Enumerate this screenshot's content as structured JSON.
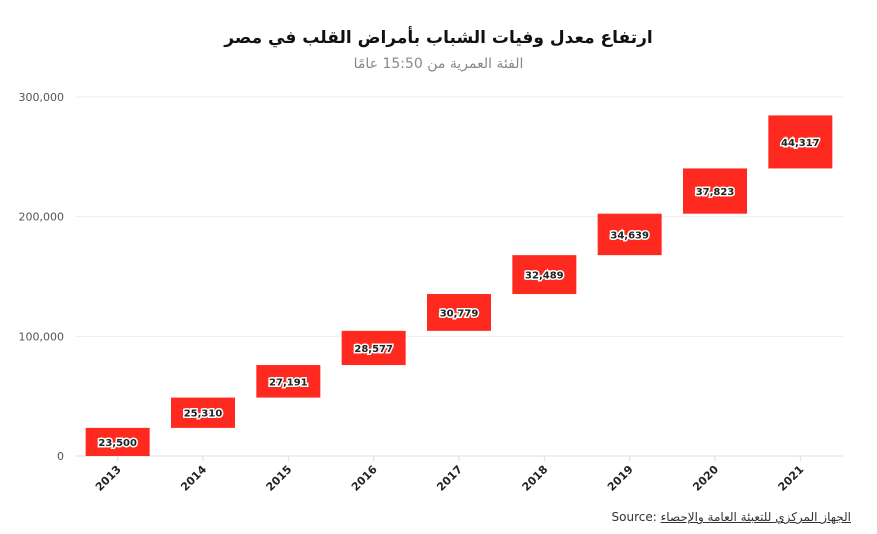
{
  "chart_data": {
    "type": "waterfall",
    "title": "ارتفاع معدل وفيات الشباب بأمراض القلب في مصر",
    "subtitle": "الفئة العمرية من 15:50 عامًا",
    "categories": [
      "2013",
      "2014",
      "2015",
      "2016",
      "2017",
      "2018",
      "2019",
      "2020",
      "2021"
    ],
    "values": [
      23500,
      25310,
      27191,
      28577,
      30779,
      32489,
      34639,
      37823,
      44317
    ],
    "value_labels": [
      "23,500",
      "25,310",
      "27,191",
      "28,577",
      "30,779",
      "32,489",
      "34,639",
      "37,823",
      "44,317"
    ],
    "yticks": [
      0,
      100000,
      200000,
      300000
    ],
    "ytick_labels": [
      "0",
      "100,000",
      "200,000",
      "300,000"
    ],
    "ylim": [
      0,
      300000
    ],
    "xlabel": "",
    "ylabel": "",
    "grid": true,
    "bar_color": "#ff2a1f"
  },
  "source": {
    "label": "Source:",
    "text": "الجهاز المركزي للتعبئة العامة والإحصاء"
  }
}
